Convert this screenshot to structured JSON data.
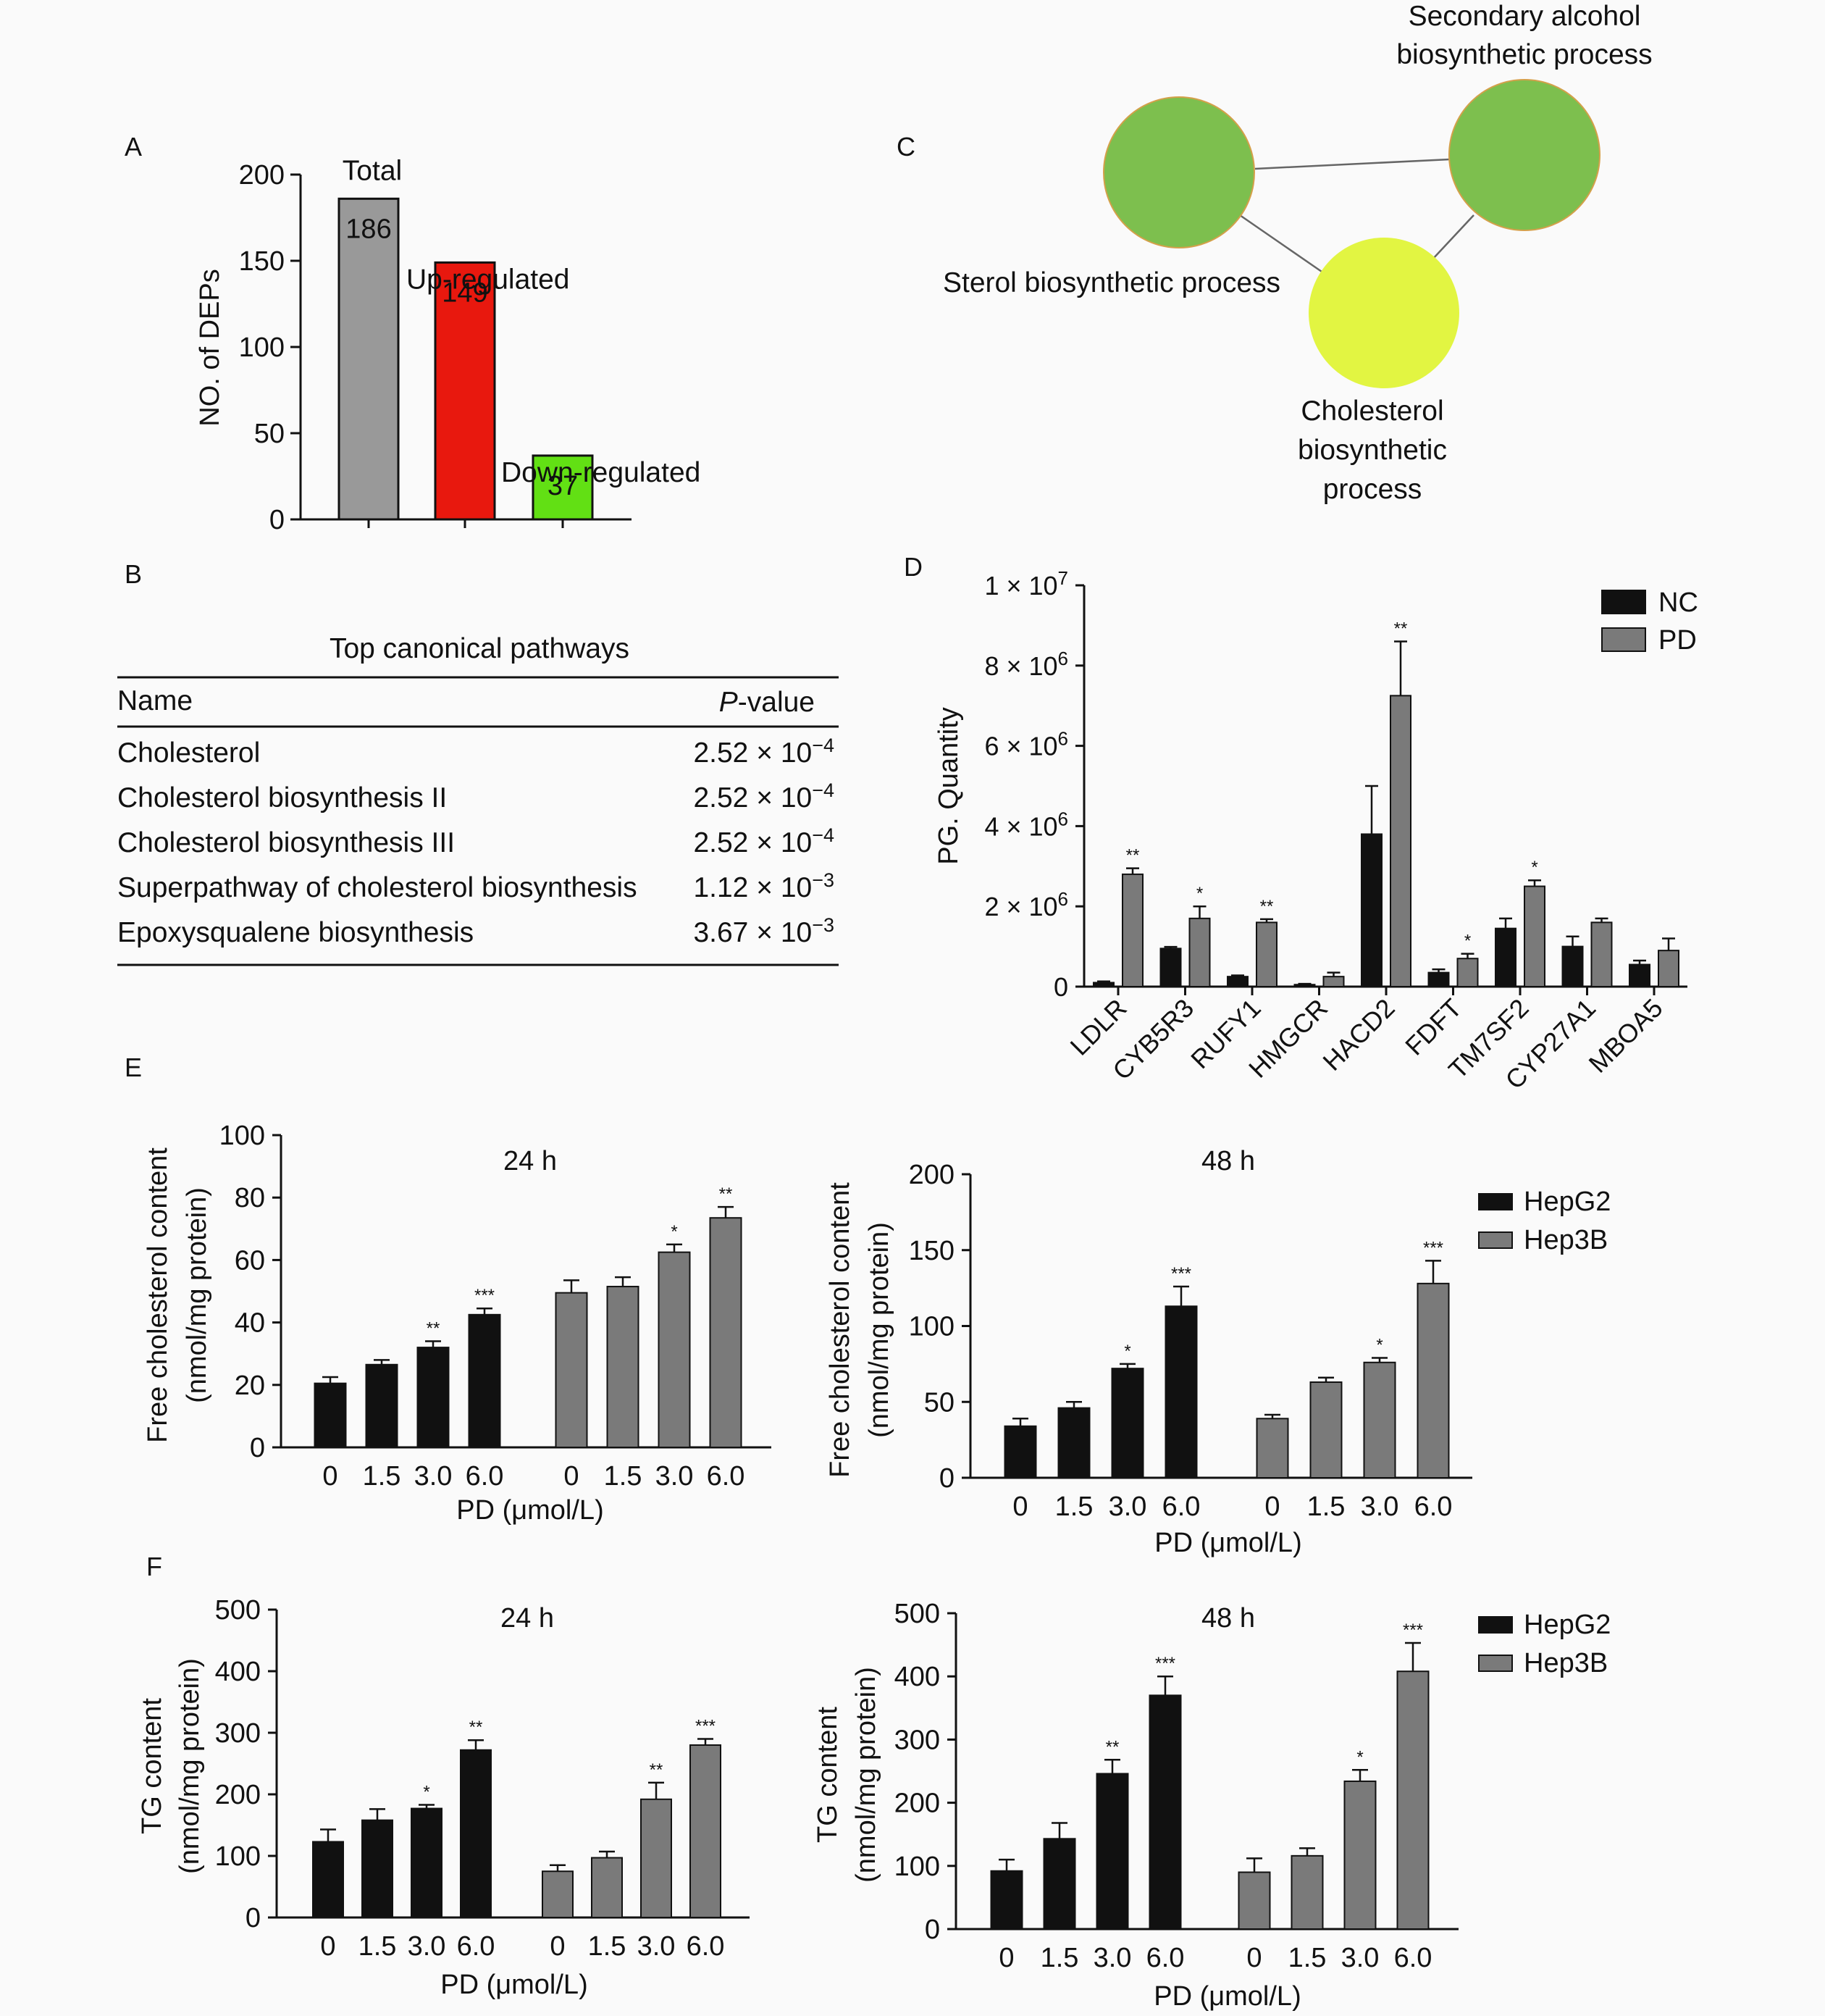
{
  "panel_letters": {
    "a": "A",
    "b": "B",
    "c": "C",
    "d": "D",
    "e": "E",
    "f": "F"
  },
  "panel_a": {
    "ylabel": "NO. of DEPs",
    "ticks": [
      0,
      50,
      100,
      150,
      200
    ],
    "bar_labels": [
      "Total",
      "Up-regulated",
      "Down-regulated"
    ]
  },
  "panel_b": {
    "title": "Top canonical pathways",
    "col_name": "Name",
    "col_p_italic": "P",
    "col_p_rest": "-value",
    "rows": [
      {
        "name": "Cholesterol",
        "mant": "2.52",
        "exp": "−4"
      },
      {
        "name": "Cholesterol biosynthesis II",
        "mant": "2.52",
        "exp": "−4"
      },
      {
        "name": "Cholesterol biosynthesis III",
        "mant": "2.52",
        "exp": "−4"
      },
      {
        "name": "Superpathway of cholesterol biosynthesis",
        "mant": "1.12",
        "exp": "−3"
      },
      {
        "name": "Epoxysqualene biosynthesis",
        "mant": "3.67",
        "exp": "−3"
      }
    ]
  },
  "panel_c": {
    "nodes": [
      {
        "label_lines": [
          "Sterol biosynthetic process"
        ],
        "color": "#7dbf4e"
      },
      {
        "label_lines": [
          "Secondary alcohol",
          "biosynthetic process"
        ],
        "color": "#7dbf4e"
      },
      {
        "label_lines": [
          "Cholesterol",
          "biosynthetic",
          "process"
        ],
        "color": "#e2f542",
        "label_color": "#9aa83a"
      }
    ]
  },
  "panel_d": {
    "ylabel": "PG. Quantity",
    "tick_labels": [
      "0",
      "2 × 10",
      "4 × 10",
      "6 × 10",
      "8 × 10",
      "1 × 10"
    ],
    "tick_exps": [
      "",
      "6",
      "6",
      "6",
      "6",
      "7"
    ],
    "legend": [
      "NC",
      "PD"
    ]
  },
  "panel_e": {
    "ylabel_line1": "Free cholesterol content",
    "ylabel_line2": "(nmol/mg protein)",
    "xlabel": "PD (μmol/L)",
    "legend": [
      "HepG2",
      "Hep3B"
    ]
  },
  "panel_f": {
    "ylabel_line1": "TG content",
    "ylabel_line2": "(nmol/mg protein)",
    "xlabel": "PD (μmol/L)",
    "legend": [
      "HepG2",
      "Hep3B"
    ]
  },
  "chart_data": [
    {
      "type": "bar",
      "id": "A",
      "categories": [
        "Total",
        "Up-regulated",
        "Down-regulated"
      ],
      "values": [
        186,
        149,
        37
      ],
      "colors": [
        "#999999",
        "#e8180e",
        "#62e014"
      ],
      "ylabel": "NO. of DEPs",
      "ylim": [
        0,
        200
      ]
    },
    {
      "type": "table",
      "id": "B",
      "title": "Top canonical pathways",
      "columns": [
        "Name",
        "P-value"
      ],
      "rows": [
        [
          "Cholesterol",
          "2.52 × 10−4"
        ],
        [
          "Cholesterol biosynthesis II",
          "2.52 × 10−4"
        ],
        [
          "Cholesterol biosynthesis III",
          "2.52 × 10−4"
        ],
        [
          "Superpathway of cholesterol biosynthesis",
          "1.12 × 10−3"
        ],
        [
          "Epoxysqualene biosynthesis",
          "3.67 × 10−3"
        ]
      ]
    },
    {
      "type": "bar",
      "id": "D",
      "categories": [
        "LDLR",
        "CYB5R3",
        "RUFY1",
        "HMGCR",
        "HACD2",
        "FDFT",
        "TM7SF2",
        "CYP27A1",
        "MBOA5"
      ],
      "series": [
        {
          "name": "NC",
          "color": "#111111",
          "values": [
            0.1,
            0.95,
            0.25,
            0.05,
            3.8,
            0.35,
            1.45,
            1.0,
            0.55
          ],
          "errors": [
            0.03,
            0.04,
            0.03,
            0.02,
            1.2,
            0.08,
            0.25,
            0.25,
            0.1
          ],
          "sig": [
            "",
            "",
            "",
            "",
            "",
            "",
            "",
            "",
            ""
          ]
        },
        {
          "name": "PD",
          "color": "#7a7a7a",
          "values": [
            2.8,
            1.7,
            1.6,
            0.25,
            7.25,
            0.7,
            2.5,
            1.6,
            0.9
          ],
          "errors": [
            0.15,
            0.3,
            0.08,
            0.1,
            1.35,
            0.12,
            0.15,
            0.1,
            0.3
          ],
          "sig": [
            "**",
            "*",
            "**",
            "",
            "**",
            "*",
            "*",
            "",
            ""
          ]
        }
      ],
      "ylabel": "PG. Quantity",
      "unit_multiplier": 1000000,
      "ylim": [
        0,
        10
      ]
    },
    {
      "type": "bar",
      "id": "E-24h",
      "title": "24 h",
      "categories": [
        "0",
        "1.5",
        "3.0",
        "6.0"
      ],
      "series": [
        {
          "name": "HepG2",
          "color": "#111111",
          "values": [
            20.5,
            26.5,
            32,
            42.5
          ],
          "errors": [
            2,
            1.5,
            2,
            2
          ],
          "sig": [
            "",
            "",
            "**",
            "***"
          ]
        },
        {
          "name": "Hep3B",
          "color": "#7a7a7a",
          "values": [
            49.5,
            51.5,
            62.5,
            73.5
          ],
          "errors": [
            4,
            3,
            2.5,
            3.5
          ],
          "sig": [
            "",
            "",
            "*",
            "**"
          ]
        }
      ],
      "ylabel": "Free cholesterol content (nmol/mg protein)",
      "xlabel": "PD (μmol/L)",
      "ylim": [
        0,
        100
      ]
    },
    {
      "type": "bar",
      "id": "E-48h",
      "title": "48 h",
      "categories": [
        "0",
        "1.5",
        "3.0",
        "6.0"
      ],
      "series": [
        {
          "name": "HepG2",
          "color": "#111111",
          "values": [
            34,
            46,
            72,
            113
          ],
          "errors": [
            5,
            4,
            3,
            13
          ],
          "sig": [
            "",
            "",
            "*",
            "***"
          ]
        },
        {
          "name": "Hep3B",
          "color": "#7a7a7a",
          "values": [
            39,
            63,
            76,
            128
          ],
          "errors": [
            2.5,
            3,
            3,
            15
          ],
          "sig": [
            "",
            "",
            "*",
            "***"
          ]
        }
      ],
      "ylabel": "Free cholesterol content (nmol/mg protein)",
      "xlabel": "PD (μmol/L)",
      "ylim": [
        0,
        200
      ]
    },
    {
      "type": "bar",
      "id": "F-24h",
      "title": "24 h",
      "categories": [
        "0",
        "1.5",
        "3.0",
        "6.0"
      ],
      "series": [
        {
          "name": "HepG2",
          "color": "#111111",
          "values": [
            123,
            158,
            177,
            272
          ],
          "errors": [
            20,
            18,
            6,
            16
          ],
          "sig": [
            "",
            "",
            "*",
            "**"
          ]
        },
        {
          "name": "Hep3B",
          "color": "#7a7a7a",
          "values": [
            75,
            97,
            192,
            280
          ],
          "errors": [
            10,
            10,
            27,
            10
          ],
          "sig": [
            "",
            "",
            "**",
            "***"
          ]
        }
      ],
      "ylabel": "TG content (nmol/mg protein)",
      "xlabel": "PD (μmol/L)",
      "ylim": [
        0,
        500
      ]
    },
    {
      "type": "bar",
      "id": "F-48h",
      "title": "48 h",
      "categories": [
        "0",
        "1.5",
        "3.0",
        "6.0"
      ],
      "series": [
        {
          "name": "HepG2",
          "color": "#111111",
          "values": [
            92,
            143,
            246,
            370
          ],
          "errors": [
            18,
            25,
            22,
            30
          ],
          "sig": [
            "",
            "",
            "**",
            "***"
          ]
        },
        {
          "name": "Hep3B",
          "color": "#7a7a7a",
          "values": [
            90,
            116,
            234,
            408
          ],
          "errors": [
            22,
            12,
            18,
            45
          ],
          "sig": [
            "",
            "",
            "*",
            "***"
          ]
        }
      ],
      "ylabel": "TG content (nmol/mg protein)",
      "xlabel": "PD (μmol/L)",
      "ylim": [
        0,
        500
      ]
    }
  ]
}
